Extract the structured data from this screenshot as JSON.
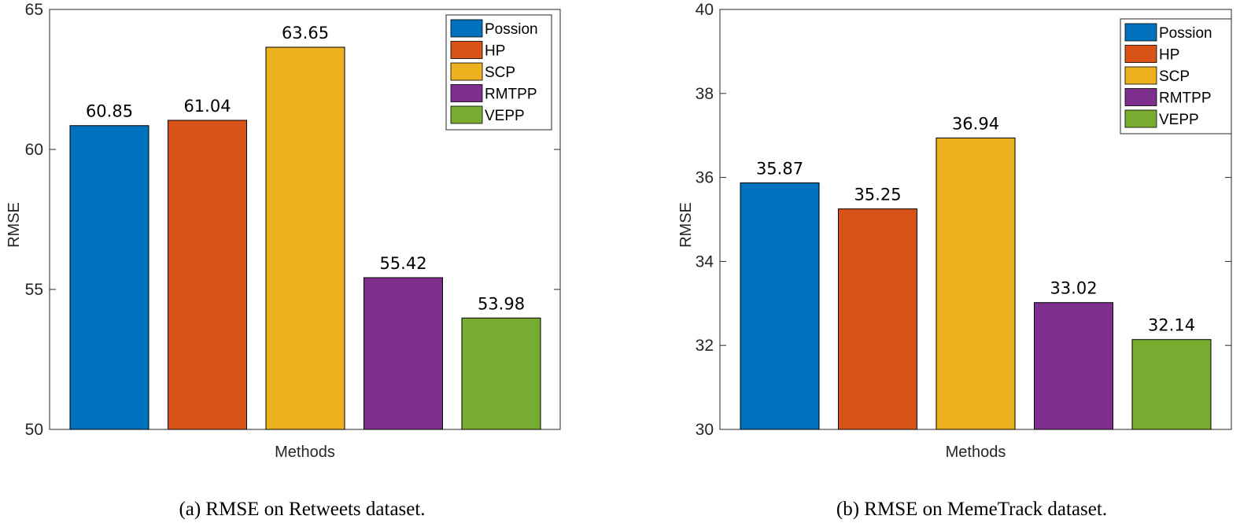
{
  "chart_data": [
    {
      "type": "bar",
      "categories": [
        "Possion",
        "HP",
        "SCP",
        "RMTPP",
        "VEPP"
      ],
      "values": [
        60.85,
        61.04,
        63.65,
        55.42,
        53.98
      ],
      "value_labels": [
        "60.85",
        "61.04",
        "63.65",
        "55.42",
        "53.98"
      ],
      "colors": [
        "#0072BD",
        "#D95319",
        "#EDB120",
        "#7E2F8E",
        "#77AC30"
      ],
      "ylim": [
        50,
        65
      ],
      "yticks": [
        50,
        55,
        60,
        65
      ],
      "xlabel": "Methods",
      "ylabel": "RMSE",
      "legend": [
        "Possion",
        "HP",
        "SCP",
        "RMTPP",
        "VEPP"
      ],
      "legend_position": "top-right",
      "caption": "(a) RMSE on Retweets dataset."
    },
    {
      "type": "bar",
      "categories": [
        "Possion",
        "HP",
        "SCP",
        "RMTPP",
        "VEPP"
      ],
      "values": [
        35.87,
        35.25,
        36.94,
        33.02,
        32.14
      ],
      "value_labels": [
        "35.87",
        "35.25",
        "36.94",
        "33.02",
        "32.14"
      ],
      "colors": [
        "#0072BD",
        "#D95319",
        "#EDB120",
        "#7E2F8E",
        "#77AC30"
      ],
      "ylim": [
        30,
        40
      ],
      "yticks": [
        30,
        32,
        34,
        36,
        38,
        40
      ],
      "xlabel": "Methods",
      "ylabel": "RMSE",
      "legend": [
        "Possion",
        "HP",
        "SCP",
        "RMTPP",
        "VEPP"
      ],
      "legend_position": "top-right",
      "caption": "(b) RMSE on MemeTrack dataset."
    }
  ]
}
